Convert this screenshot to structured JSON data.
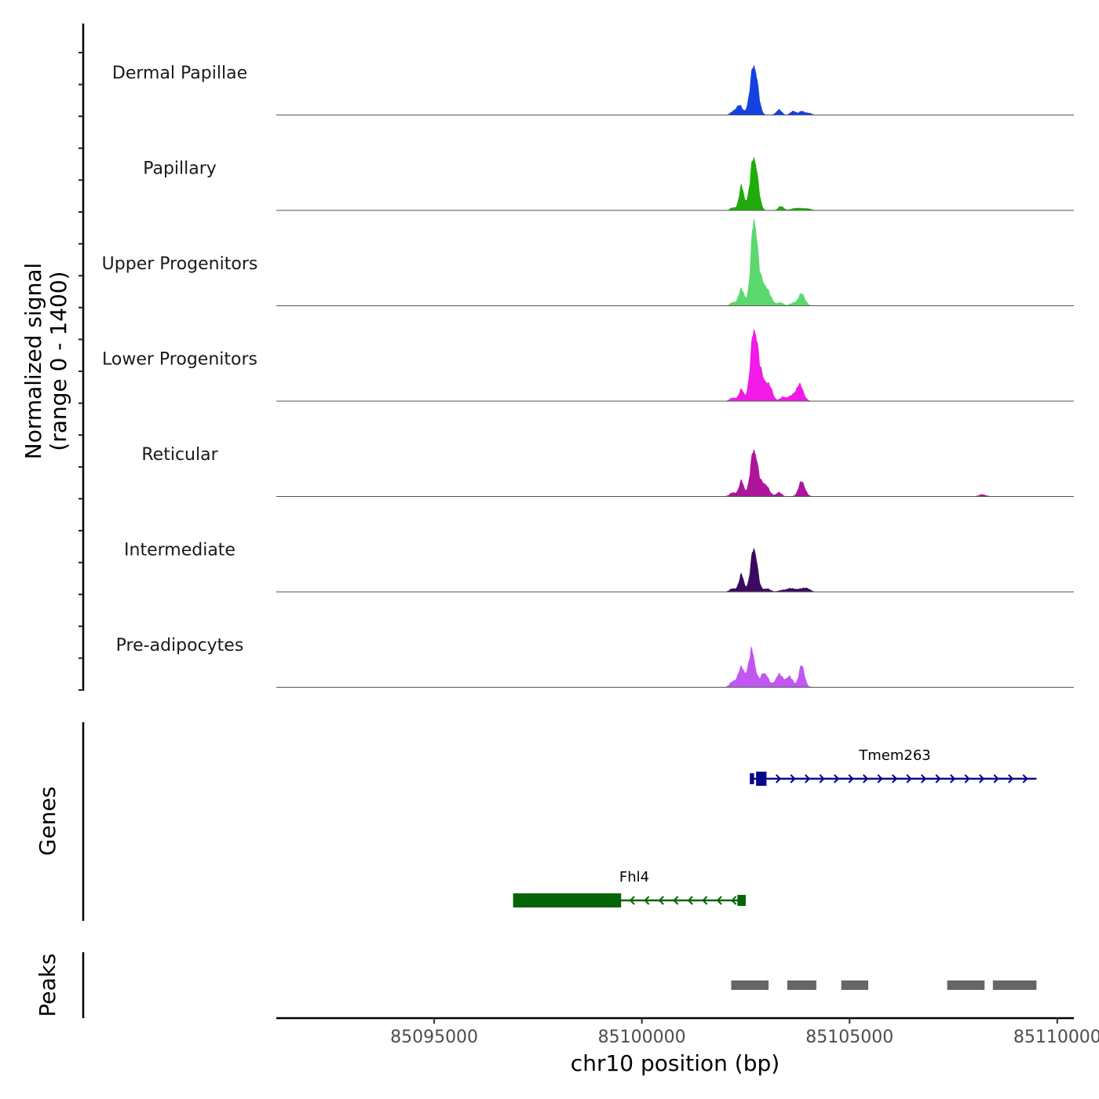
{
  "chart_data": {
    "type": "area",
    "title": "",
    "chromosome": "chr10",
    "xlim": [
      85091200,
      85110400
    ],
    "xlabel": "chr10 position (bp)",
    "ylabel": "Normalized signal",
    "ylabel_range": "(range 0 - 1400)",
    "ylim": [
      0,
      1400
    ],
    "x_ticks": [
      85095000,
      85100000,
      85105000,
      85110000
    ],
    "x_tick_labels": [
      "85095000",
      "85100000",
      "85105000",
      "85110000"
    ],
    "tracks": [
      {
        "name": "Dermal Papillae",
        "color": "#1442e0",
        "peaks": [
          [
            85102700,
            900,
            90
          ],
          [
            85102350,
            160,
            80
          ],
          [
            85102200,
            50,
            70
          ],
          [
            85103300,
            90,
            70
          ],
          [
            85103650,
            70,
            70
          ],
          [
            85103850,
            60,
            60
          ],
          [
            85104000,
            35,
            80
          ]
        ]
      },
      {
        "name": "Papillary",
        "color": "#1fac0a",
        "peaks": [
          [
            85102700,
            960,
            90
          ],
          [
            85102400,
            420,
            60
          ],
          [
            85102200,
            50,
            70
          ],
          [
            85103350,
            70,
            70
          ],
          [
            85103700,
            40,
            100
          ],
          [
            85103950,
            35,
            110
          ]
        ]
      },
      {
        "name": "Upper Progenitors",
        "color": "#5bd96e",
        "peaks": [
          [
            85102700,
            1400,
            75
          ],
          [
            85102900,
            420,
            150
          ],
          [
            85102400,
            290,
            70
          ],
          [
            85102200,
            60,
            70
          ],
          [
            85103350,
            50,
            70
          ],
          [
            85103850,
            210,
            80
          ],
          [
            85103650,
            50,
            80
          ]
        ]
      },
      {
        "name": "Lower Progenitors",
        "color": "#f21ae6",
        "peaks": [
          [
            85102700,
            1180,
            85
          ],
          [
            85102900,
            400,
            130
          ],
          [
            85102400,
            200,
            60
          ],
          [
            85102200,
            60,
            80
          ],
          [
            85103100,
            120,
            70
          ],
          [
            85103400,
            70,
            70
          ],
          [
            85103800,
            280,
            90
          ],
          [
            85103600,
            80,
            90
          ]
        ]
      },
      {
        "name": "Reticular",
        "color": "#ad169b",
        "peaks": [
          [
            85102700,
            840,
            85
          ],
          [
            85102400,
            270,
            60
          ],
          [
            85102950,
            230,
            100
          ],
          [
            85102200,
            70,
            80
          ],
          [
            85103300,
            70,
            70
          ],
          [
            85103850,
            260,
            80
          ],
          [
            85108200,
            35,
            90
          ]
        ]
      },
      {
        "name": "Intermediate",
        "color": "#3a0b5e",
        "peaks": [
          [
            85102700,
            790,
            80
          ],
          [
            85102400,
            300,
            60
          ],
          [
            85102200,
            60,
            80
          ],
          [
            85103000,
            60,
            80
          ],
          [
            85103600,
            60,
            200
          ],
          [
            85103950,
            60,
            90
          ]
        ]
      },
      {
        "name": "Pre-adipocytes",
        "color": "#c156f2",
        "peaks": [
          [
            85102650,
            650,
            80
          ],
          [
            85102400,
            340,
            80
          ],
          [
            85102200,
            100,
            80
          ],
          [
            85102950,
            260,
            90
          ],
          [
            85103300,
            220,
            90
          ],
          [
            85103550,
            180,
            90
          ],
          [
            85103850,
            380,
            70
          ]
        ]
      }
    ],
    "genes": [
      {
        "name": "Tmem263",
        "strand": "+",
        "color": "#05058c",
        "start": 85102600,
        "end": 85109500,
        "exons": [
          [
            85102600,
            85102700,
            "thin"
          ],
          [
            85102750,
            85103000,
            "thick"
          ]
        ]
      },
      {
        "name": "Fhl4",
        "strand": "-",
        "color": "#056405",
        "start": 85096900,
        "end": 85102500,
        "exons": [
          [
            85096900,
            85099500,
            "thick"
          ],
          [
            85102300,
            85102500,
            "thin"
          ]
        ]
      }
    ],
    "peaks": [
      [
        85102150,
        85103050
      ],
      [
        85103500,
        85104200
      ],
      [
        85104800,
        85105450
      ],
      [
        85107350,
        85108250
      ],
      [
        85108450,
        85109500
      ]
    ]
  }
}
